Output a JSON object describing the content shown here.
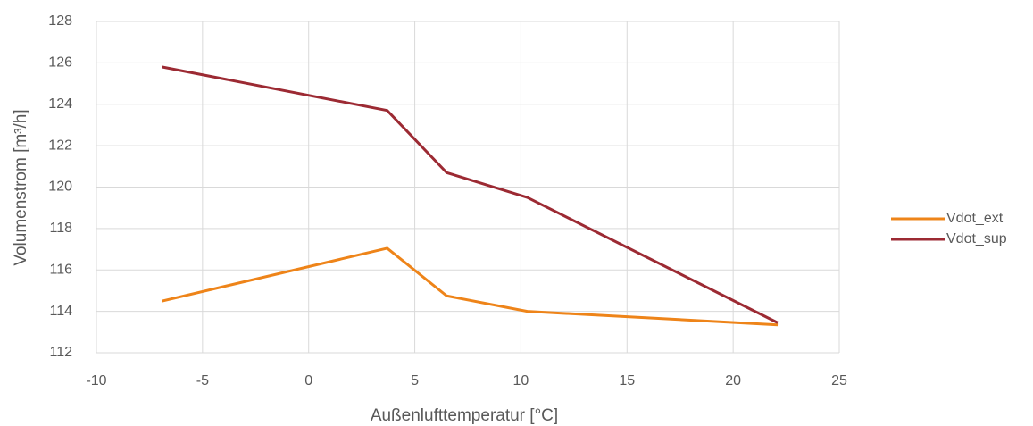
{
  "chart_data": {
    "type": "line",
    "xlabel": "Außenlufttemperatur [°C]",
    "ylabel": "Volumenstrom [m³/h]",
    "series": [
      {
        "name": "Vdot_ext",
        "color": "#ee8419",
        "x": [
          -6.9,
          3.7,
          6.5,
          10.3,
          22.1
        ],
        "values": [
          114.5,
          117.05,
          114.75,
          114.0,
          113.35
        ]
      },
      {
        "name": "Vdot_sup",
        "color": "#9c2a33",
        "x": [
          -6.9,
          3.7,
          6.5,
          10.3,
          22.1
        ],
        "values": [
          125.8,
          123.7,
          120.7,
          119.5,
          113.45
        ]
      }
    ],
    "xlim": [
      -10,
      25
    ],
    "xticks": [
      -10,
      -5,
      0,
      5,
      10,
      15,
      20,
      25
    ],
    "ylim": [
      112,
      128
    ],
    "yticks": [
      112,
      114,
      116,
      118,
      120,
      122,
      124,
      126,
      128
    ],
    "grid": true,
    "legend": "right"
  }
}
